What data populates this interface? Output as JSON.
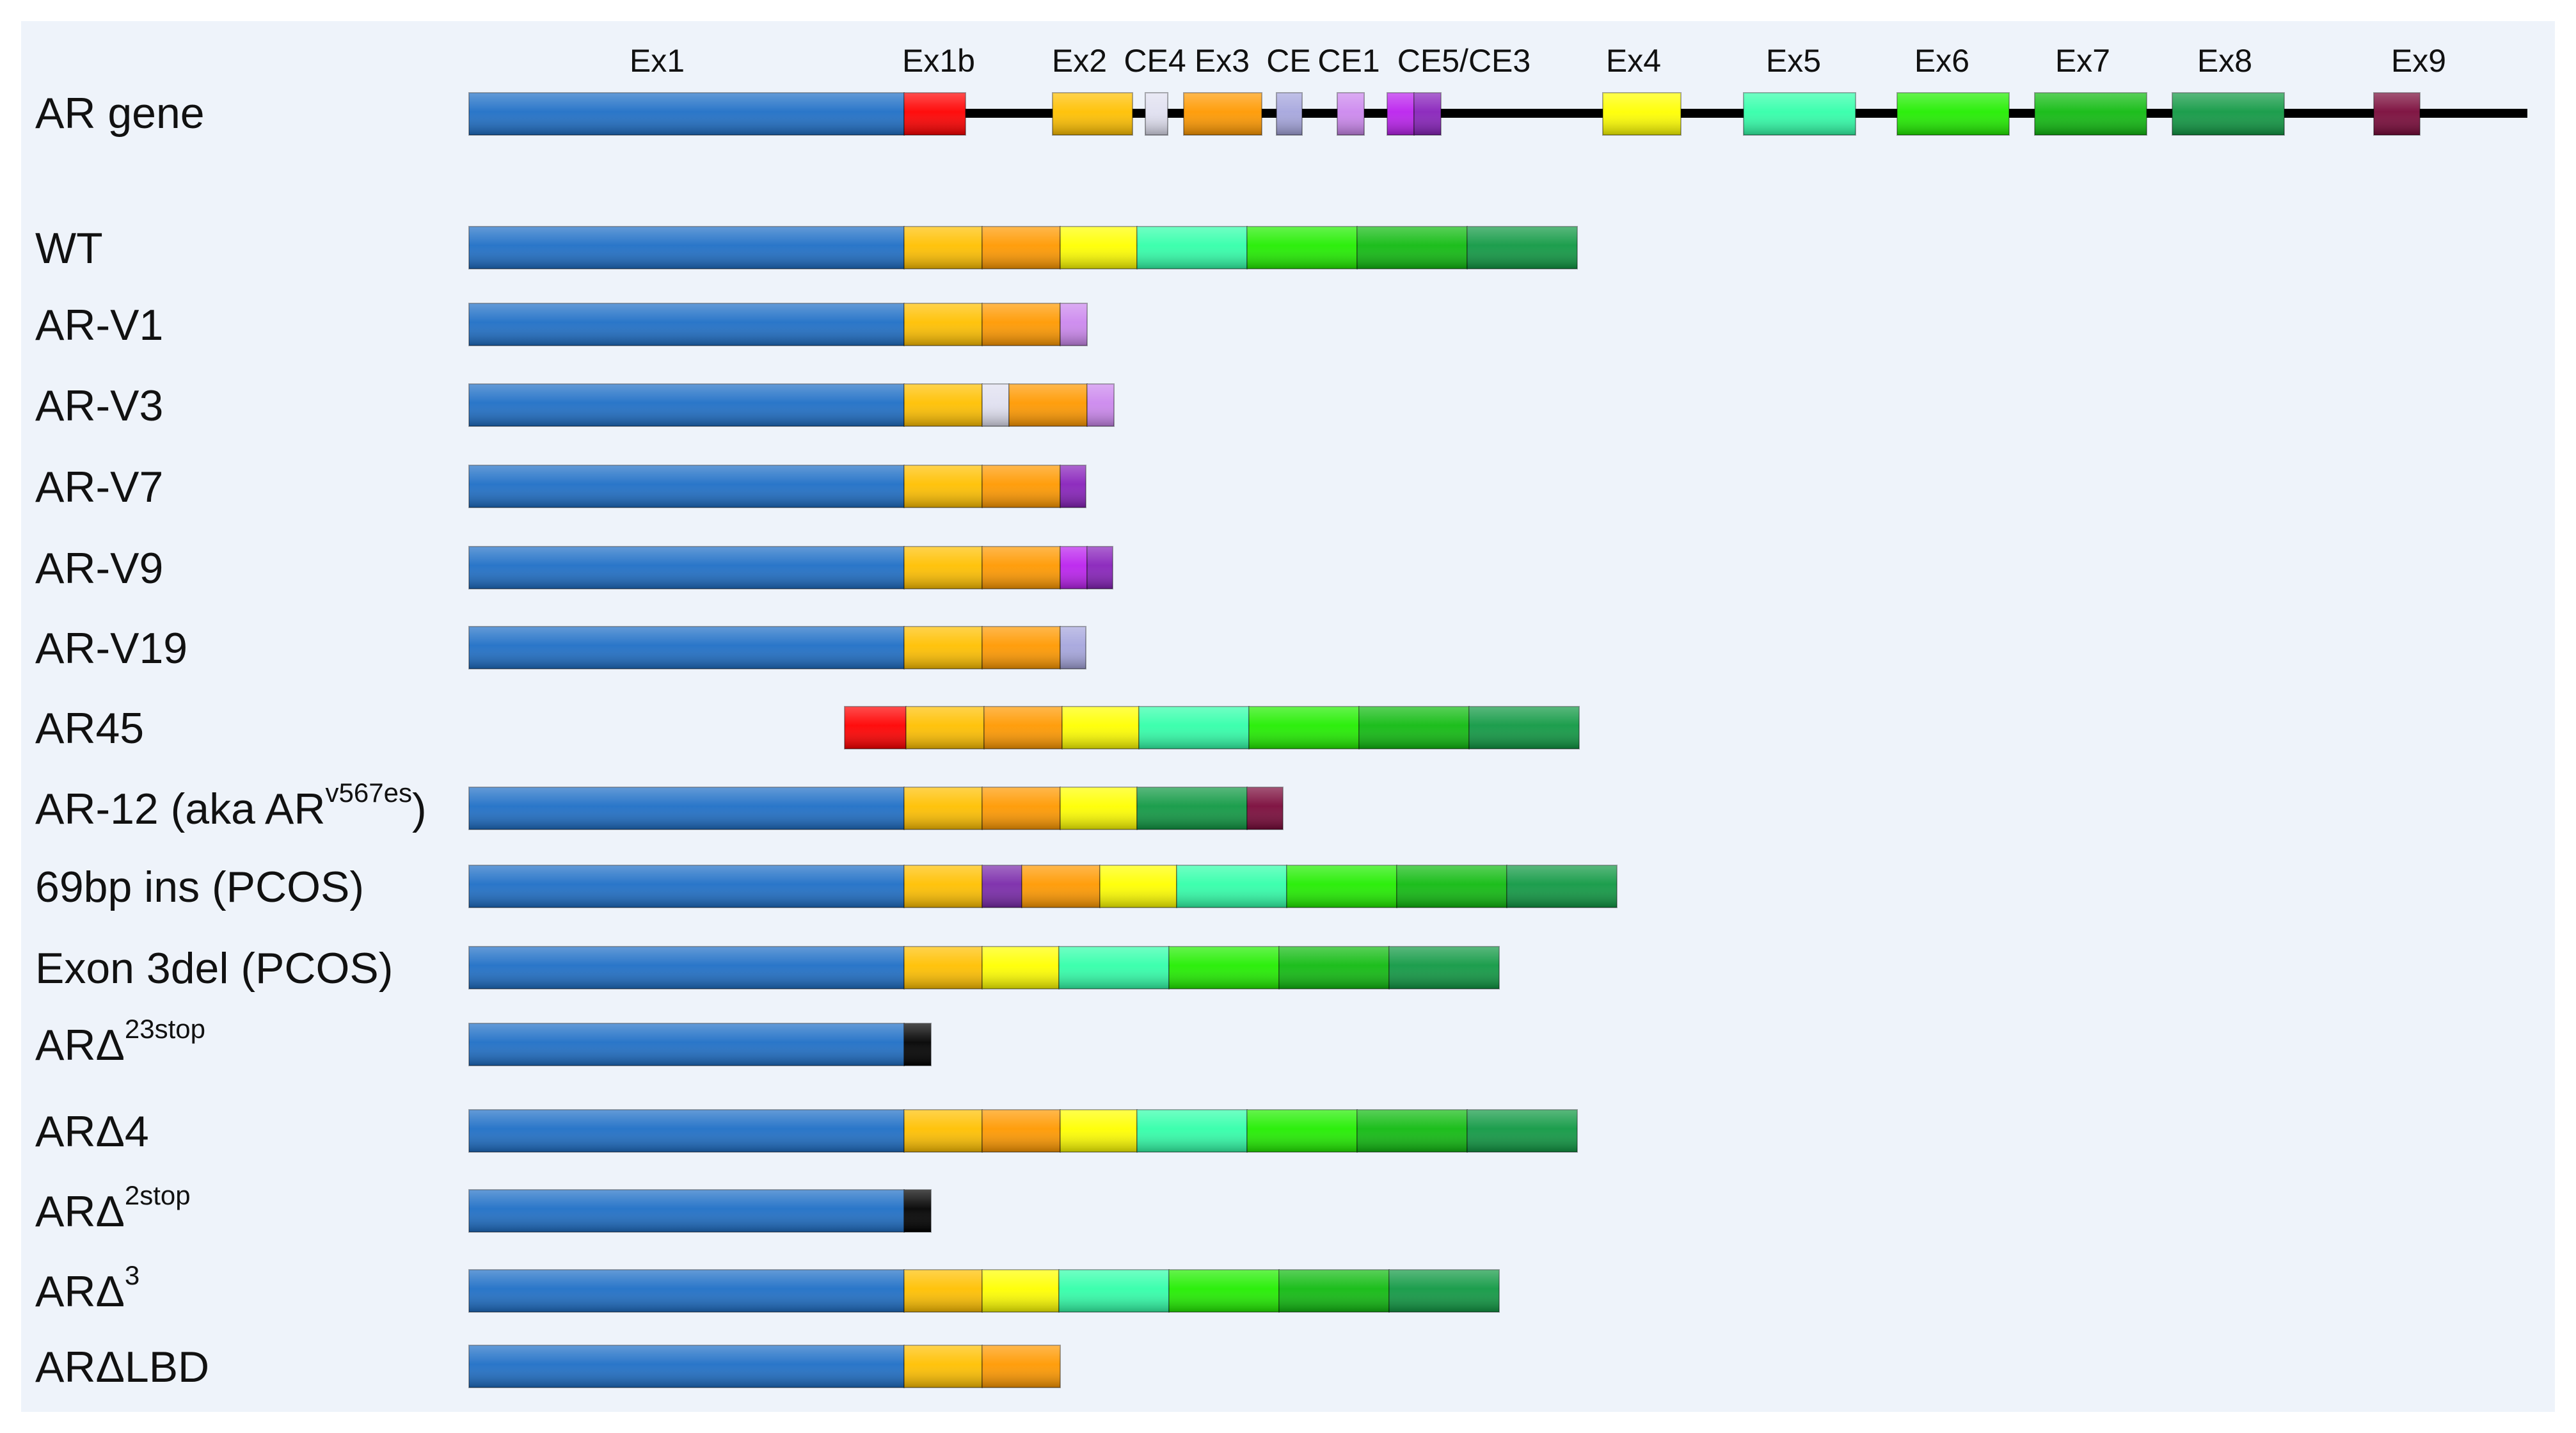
{
  "colors": {
    "ex1": "#1f6fc6",
    "ex1b": "#ff0000",
    "ex2": "#ffc000",
    "ex3": "#ff9900",
    "ex4": "#ffff00",
    "ex5": "#33ffaa",
    "ex6": "#22ee00",
    "ex7": "#11bb11",
    "ex8": "#119944",
    "ex9": "#7a0a3a",
    "ce4": "#e0e0f0",
    "ce": "#a6a6dd",
    "ce1": "#cc88ee",
    "ce5": "#bb22ee",
    "ce3": "#8822bb",
    "ins69": "#7a2aaa",
    "stop": "#000000",
    "background": "#eef3fa"
  },
  "gene": {
    "label": "AR gene",
    "exon_labels": [
      "Ex1",
      "Ex1b",
      "Ex2",
      "CE4",
      "Ex3",
      "CE",
      "CE1",
      "CE5/CE3",
      "Ex4",
      "Ex5",
      "Ex6",
      "Ex7",
      "Ex8",
      "Ex9"
    ],
    "segments": [
      "ex1",
      "ex1b",
      "ex2",
      "ce4",
      "ex3",
      "ce",
      "ce1",
      "ce5",
      "ce3",
      "ex4",
      "ex5",
      "ex6",
      "ex7",
      "ex8",
      "ex9"
    ]
  },
  "variants": [
    {
      "name": "WT",
      "sup": "",
      "suffix": "",
      "segments": [
        "ex1",
        "ex2",
        "ex3",
        "ex4",
        "ex5",
        "ex6",
        "ex7",
        "ex8"
      ]
    },
    {
      "name": "AR-V1",
      "sup": "",
      "suffix": "",
      "segments": [
        "ex1",
        "ex2",
        "ex3",
        "ce1"
      ]
    },
    {
      "name": "AR-V3",
      "sup": "",
      "suffix": "",
      "segments": [
        "ex1",
        "ex2",
        "ce4",
        "ex3",
        "ce1"
      ]
    },
    {
      "name": "AR-V7",
      "sup": "",
      "suffix": "",
      "segments": [
        "ex1",
        "ex2",
        "ex3",
        "ce3"
      ]
    },
    {
      "name": "AR-V9",
      "sup": "",
      "suffix": "",
      "segments": [
        "ex1",
        "ex2",
        "ex3",
        "ce5",
        "ce3"
      ]
    },
    {
      "name": "AR-V19",
      "sup": "",
      "suffix": "",
      "segments": [
        "ex1",
        "ex2",
        "ex3",
        "ce"
      ]
    },
    {
      "name": "AR45",
      "sup": "",
      "suffix": "",
      "segments": [
        "ex1b",
        "ex2",
        "ex3",
        "ex4",
        "ex5",
        "ex6",
        "ex7",
        "ex8"
      ]
    },
    {
      "name": "AR-12 (aka AR",
      "sup": "v567es",
      "suffix": ")",
      "segments": [
        "ex1",
        "ex2",
        "ex3",
        "ex4",
        "ex8",
        "ex9"
      ]
    },
    {
      "name": "69bp ins (PCOS)",
      "sup": "",
      "suffix": "",
      "segments": [
        "ex1",
        "ex2",
        "ins69",
        "ex3",
        "ex4",
        "ex5",
        "ex6",
        "ex7",
        "ex8"
      ]
    },
    {
      "name": "Exon 3del (PCOS)",
      "sup": "",
      "suffix": "",
      "segments": [
        "ex1",
        "ex2",
        "ex4",
        "ex5",
        "ex6",
        "ex7",
        "ex8"
      ]
    },
    {
      "name": "ARΔ",
      "sup": "23stop",
      "suffix": "",
      "segments": [
        "ex1",
        "stop"
      ]
    },
    {
      "name": "ARΔ4",
      "sup": "",
      "suffix": "",
      "segments": [
        "ex1",
        "ex2",
        "ex3",
        "ex4",
        "ex5",
        "ex6",
        "ex7",
        "ex8"
      ]
    },
    {
      "name": "ARΔ",
      "sup": "2stop",
      "suffix": "",
      "segments": [
        "ex1",
        "stop"
      ]
    },
    {
      "name": "ARΔ",
      "sup": "3",
      "suffix": "",
      "segments": [
        "ex1",
        "ex2",
        "ex4",
        "ex5",
        "ex6",
        "ex7",
        "ex8"
      ]
    },
    {
      "name": "ARΔLBD",
      "sup": "",
      "suffix": "",
      "segments": [
        "ex1",
        "ex2",
        "ex3"
      ]
    }
  ]
}
